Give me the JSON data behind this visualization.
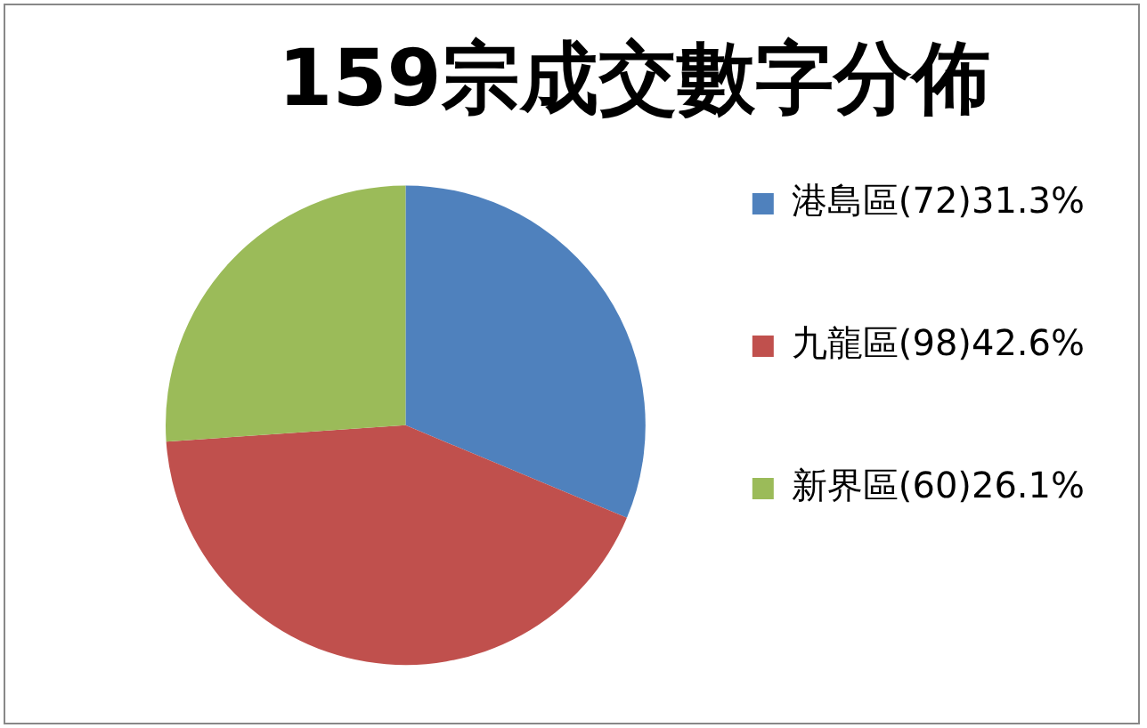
{
  "chart_data": {
    "type": "pie",
    "title": "159宗成交數字分佈",
    "categories": [
      "港島區(72)31.3%",
      "九龍區(98)42.6%",
      "新界區(60)26.1%"
    ],
    "values": [
      72,
      98,
      60
    ],
    "colors": [
      "#4f81bd",
      "#c0504d",
      "#9bbb59"
    ],
    "legend": "right"
  }
}
